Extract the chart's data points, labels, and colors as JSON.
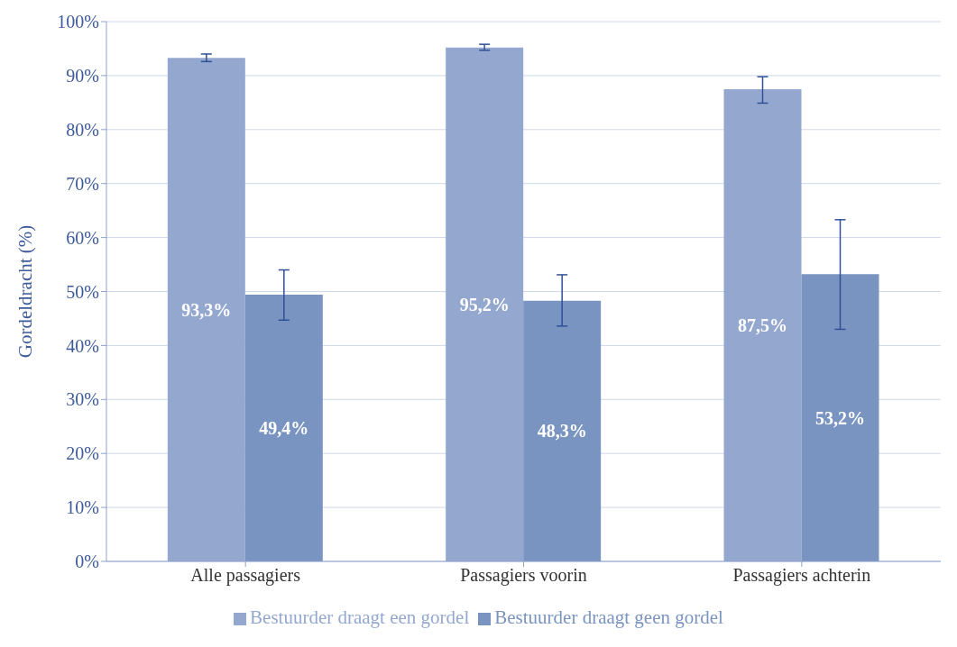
{
  "chart_data": {
    "type": "bar",
    "ylabel": "Gordeldracht (%)",
    "categories": [
      "Alle passagiers",
      "Passagiers voorin",
      "Passagiers achterin"
    ],
    "series": [
      {
        "name": "Bestuurder draagt een gordel",
        "color": "#94a8cf",
        "values": [
          93.3,
          95.2,
          87.5
        ],
        "errors": [
          [
            92.6,
            94.0
          ],
          [
            94.7,
            95.8
          ],
          [
            84.9,
            89.8
          ]
        ],
        "value_labels": [
          "93,3%",
          "95,2%",
          "87,5%"
        ]
      },
      {
        "name": "Bestuurder draagt geen gordel",
        "color": "#7a94c2",
        "values": [
          49.4,
          48.3,
          53.2
        ],
        "errors": [
          [
            44.7,
            54.0
          ],
          [
            43.6,
            53.1
          ],
          [
            43.0,
            63.3
          ]
        ],
        "value_labels": [
          "49,4%",
          "48,3%",
          "53,2%"
        ]
      }
    ],
    "ylim": [
      0,
      100
    ],
    "yticks": [
      {
        "value": 0,
        "label": "0%"
      },
      {
        "value": 10,
        "label": "10%"
      },
      {
        "value": 20,
        "label": "20%"
      },
      {
        "value": 30,
        "label": "30%"
      },
      {
        "value": 40,
        "label": "40%"
      },
      {
        "value": 50,
        "label": "50%"
      },
      {
        "value": 60,
        "label": "60%"
      },
      {
        "value": 70,
        "label": "70%"
      },
      {
        "value": 80,
        "label": "80%"
      },
      {
        "value": 90,
        "label": "90%"
      },
      {
        "value": 100,
        "label": "100%"
      }
    ],
    "grid": "y",
    "legend": "bottom"
  }
}
